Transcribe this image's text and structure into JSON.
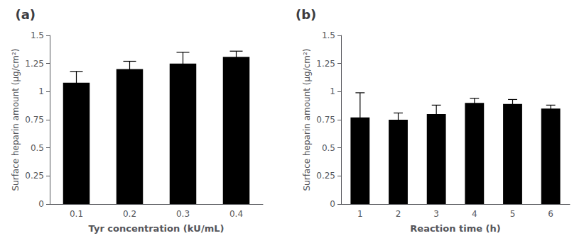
{
  "chart_data": [
    {
      "type": "bar",
      "title": "(a)",
      "categories": [
        "0.1",
        "0.2",
        "0.3",
        "0.4"
      ],
      "values": [
        1.08,
        1.2,
        1.25,
        1.31
      ],
      "errors": [
        0.1,
        0.07,
        0.1,
        0.05
      ],
      "x_label": "Tyr concentration (kU/mL)",
      "y_label": "Surface heparin amount (μg/cm²)",
      "color": "#000000",
      "ylim": [
        0,
        1.5
      ],
      "yticks": [
        0,
        0.25,
        0.5,
        0.75,
        1,
        1.25,
        1.5
      ],
      "grid": false
    },
    {
      "type": "bar",
      "title": "(b)",
      "categories": [
        "1",
        "2",
        "3",
        "4",
        "5",
        "6"
      ],
      "values": [
        0.77,
        0.75,
        0.8,
        0.9,
        0.89,
        0.85
      ],
      "errors": [
        0.22,
        0.06,
        0.08,
        0.04,
        0.04,
        0.03
      ],
      "x_label": "Reaction time (h)",
      "y_label": "Surface heparin amount (μg/cm²)",
      "color": "#000000",
      "ylim": [
        0,
        1.5
      ],
      "yticks": [
        0,
        0.25,
        0.5,
        0.75,
        1,
        1.25,
        1.5
      ],
      "grid": false
    }
  ]
}
